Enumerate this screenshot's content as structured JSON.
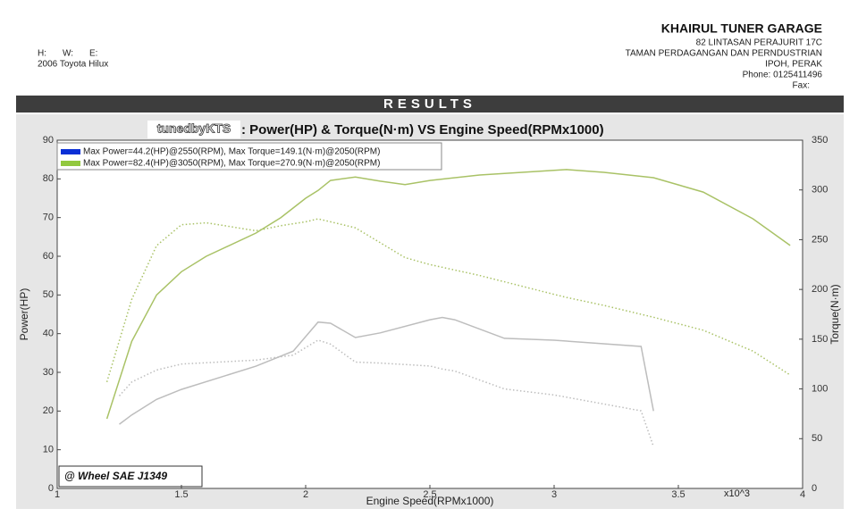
{
  "header": {
    "company": "KHAIRUL TUNER GARAGE",
    "address": [
      "82 LINTASAN PERAJURIT 17C",
      "TAMAN PERDAGANGAN DAN PERNDUSTRIAN",
      "IPOH, PERAK",
      "Phone: 0125411496",
      "Fax:"
    ],
    "contact": [
      "H:",
      "W:",
      "E:"
    ],
    "vehicle": "2006 Toyota Hilux"
  },
  "results_label": "RESULTS",
  "chart_data": {
    "type": "line",
    "logo": "tunedbyKTS",
    "title": ": Power(HP) & Torque(N·m) VS Engine Speed(RPMx1000)",
    "x_label": "Engine Speed(RPMx1000)",
    "x_multiplier": "x10^3",
    "y_label": "Power(HP)",
    "y2_label": "Torque(N·m)",
    "annotation": "@ Wheel SAE J1349",
    "xlim": [
      1,
      4
    ],
    "xticks": [
      1,
      1.5,
      2,
      2.5,
      3,
      3.5,
      4
    ],
    "ylim": [
      0,
      90
    ],
    "yticks": [
      0,
      10,
      20,
      30,
      40,
      50,
      60,
      70,
      80,
      90
    ],
    "y2lim": [
      0,
      350
    ],
    "y2ticks": [
      0,
      50,
      100,
      150,
      200,
      250,
      300,
      350
    ],
    "series": [
      {
        "name": "Max Power=44.2(HP)@2550(RPM), Max Torque=149.1(N·m)@2050(RPM)",
        "legend_color": "#0a2fd6",
        "color": "#bdbdbd",
        "x": [
          1.25,
          1.3,
          1.4,
          1.5,
          1.8,
          1.95,
          2.05,
          2.1,
          2.2,
          2.3,
          2.5,
          2.55,
          2.6,
          2.8,
          3.0,
          3.35,
          3.4
        ],
        "power": [
          16.6,
          19,
          23,
          25.6,
          31.6,
          35.5,
          43,
          42.7,
          39,
          40.2,
          43.6,
          44.2,
          43.6,
          38.8,
          38.3,
          36.7,
          20
        ],
        "torque": [
          93,
          107,
          119,
          125,
          129,
          134,
          149.1,
          145,
          127,
          126,
          123,
          120,
          118,
          100,
          94,
          78,
          42
        ]
      },
      {
        "name": "Max Power=82.4(HP)@3050(RPM), Max Torque=270.9(N·m)@2050(RPM)",
        "legend_color": "#92c83e",
        "color": "#a9c266",
        "x": [
          1.2,
          1.3,
          1.4,
          1.5,
          1.6,
          1.8,
          1.9,
          2.0,
          2.05,
          2.1,
          2.2,
          2.3,
          2.4,
          2.5,
          2.7,
          3.0,
          3.05,
          3.2,
          3.4,
          3.6,
          3.8,
          3.95
        ],
        "power": [
          18,
          38,
          50,
          56,
          60,
          66,
          70,
          75,
          77,
          79.6,
          80.5,
          79.4,
          78.5,
          79.6,
          81,
          82.2,
          82.4,
          81.7,
          80.3,
          76.6,
          69.7,
          62.8
        ],
        "torque": [
          107,
          190,
          244,
          265,
          267,
          259,
          264,
          268,
          270.9,
          268,
          262,
          247,
          232,
          225,
          214,
          195,
          192,
          184,
          172,
          159,
          138,
          114
        ]
      }
    ]
  }
}
